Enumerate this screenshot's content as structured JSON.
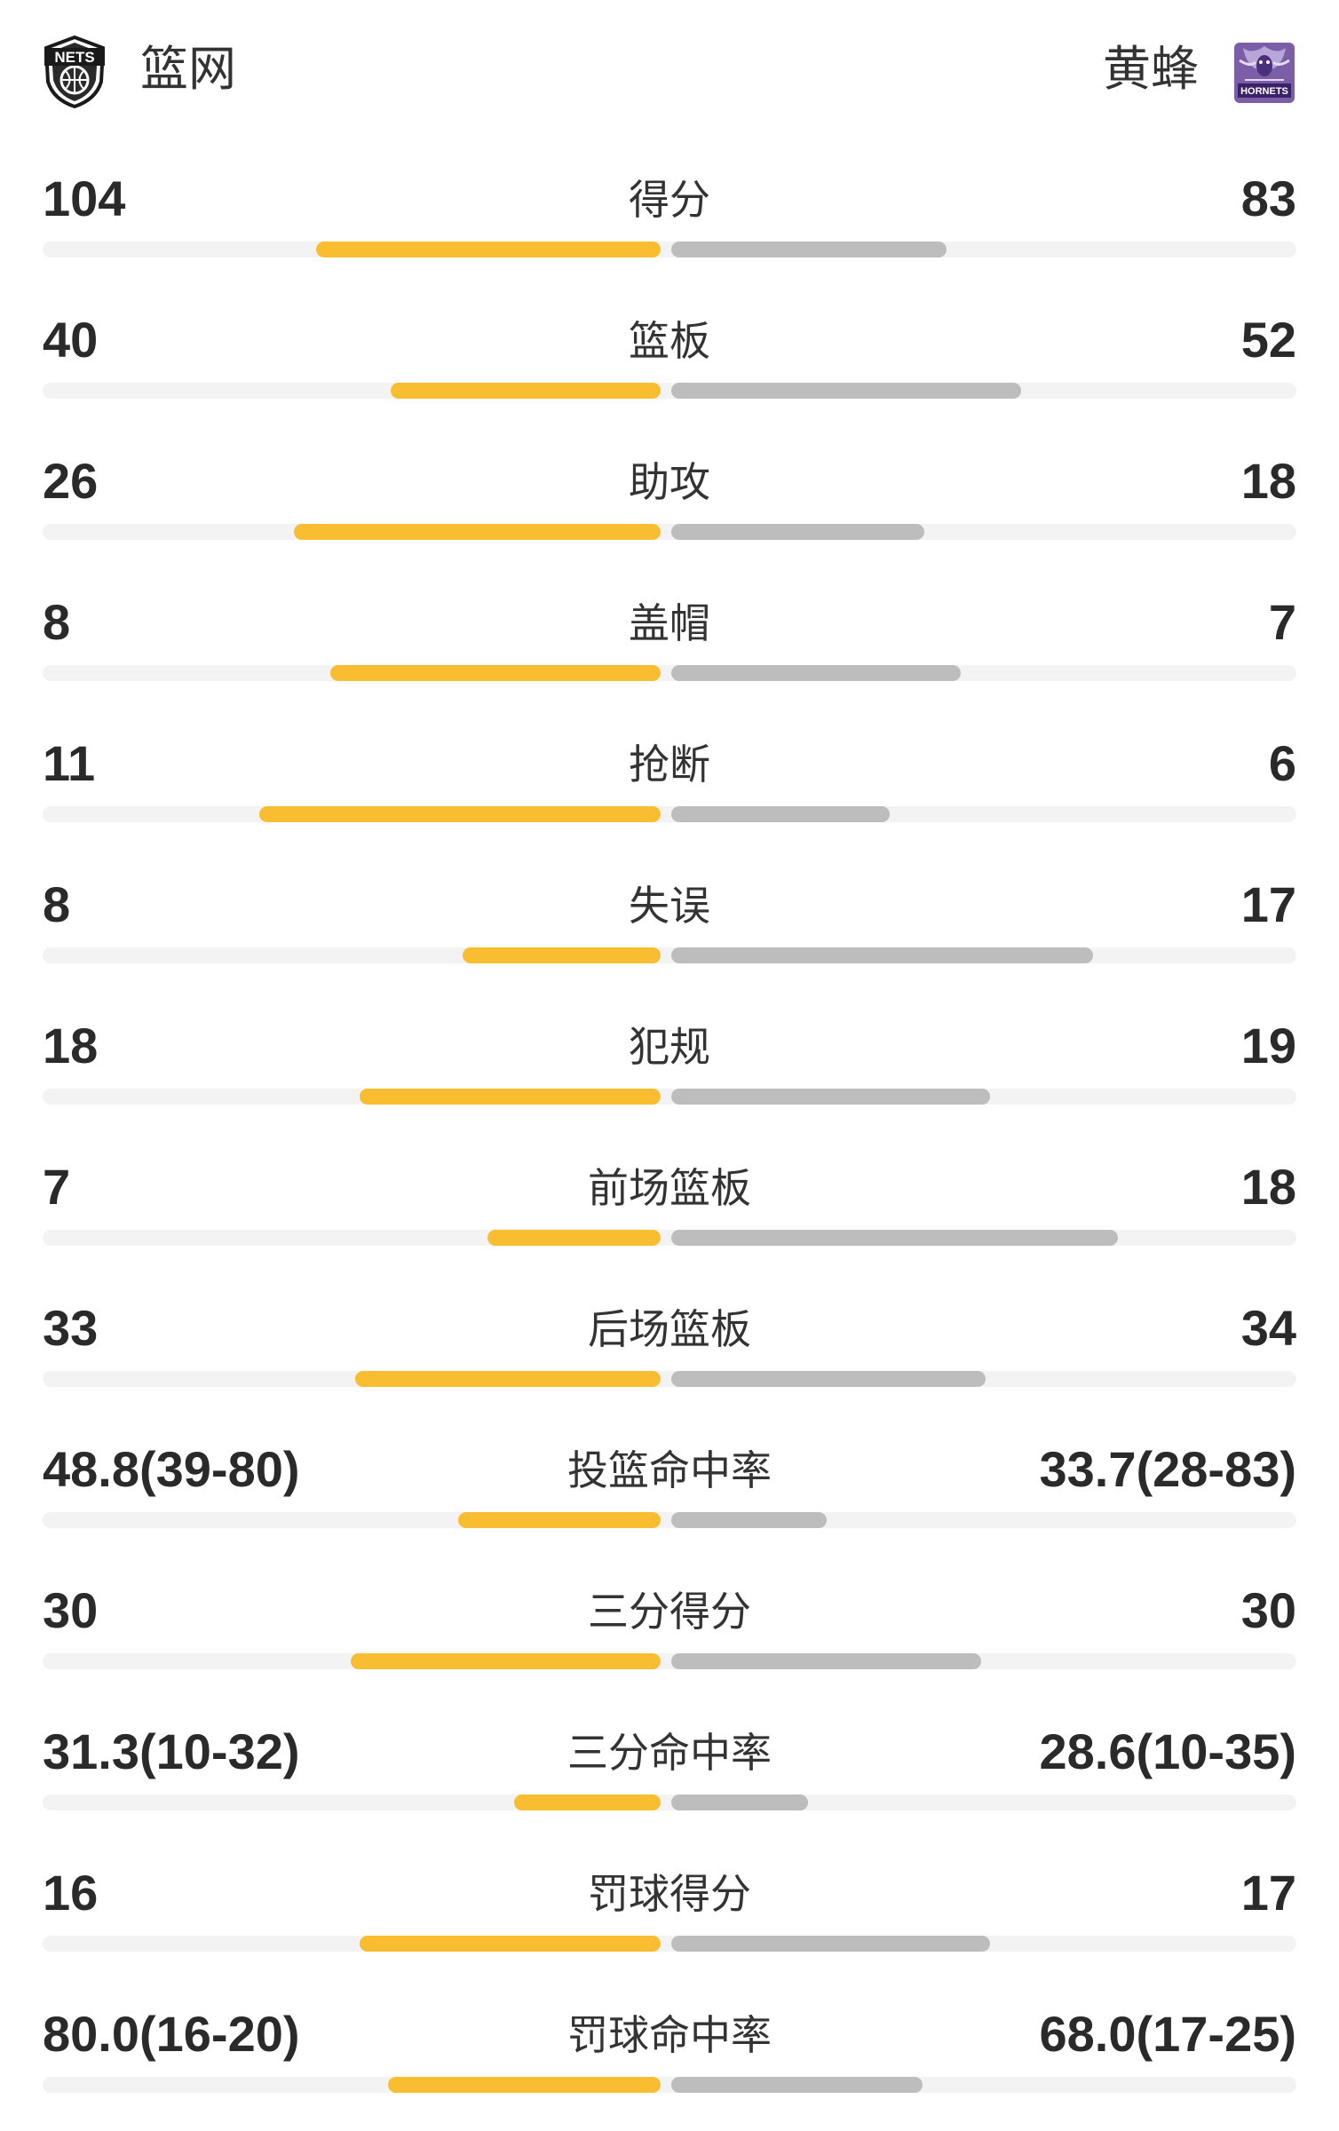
{
  "header": {
    "home_team": "篮网",
    "away_team": "黄蜂",
    "home_logo_text": "NETS",
    "away_logo_text": "HORNETS"
  },
  "colors": {
    "home_bar": "#f9bd31",
    "away_bar": "#bdbdbd",
    "track": "#f3f3f3"
  },
  "stats": [
    {
      "label": "得分",
      "home": "104",
      "away": "83",
      "home_ratio": 0.556,
      "away_ratio": 0.444
    },
    {
      "label": "篮板",
      "home": "40",
      "away": "52",
      "home_ratio": 0.435,
      "away_ratio": 0.565
    },
    {
      "label": "助攻",
      "home": "26",
      "away": "18",
      "home_ratio": 0.591,
      "away_ratio": 0.409
    },
    {
      "label": "盖帽",
      "home": "8",
      "away": "7",
      "home_ratio": 0.533,
      "away_ratio": 0.467
    },
    {
      "label": "抢断",
      "home": "11",
      "away": "6",
      "home_ratio": 0.647,
      "away_ratio": 0.353
    },
    {
      "label": "失误",
      "home": "8",
      "away": "17",
      "home_ratio": 0.32,
      "away_ratio": 0.68
    },
    {
      "label": "犯规",
      "home": "18",
      "away": "19",
      "home_ratio": 0.486,
      "away_ratio": 0.514
    },
    {
      "label": "前场篮板",
      "home": "7",
      "away": "18",
      "home_ratio": 0.28,
      "away_ratio": 0.72
    },
    {
      "label": "后场篮板",
      "home": "33",
      "away": "34",
      "home_ratio": 0.493,
      "away_ratio": 0.507
    },
    {
      "label": "投篮命中率",
      "home": "48.8(39-80)",
      "away": "33.7(28-83)",
      "home_ratio": 0.327,
      "away_ratio": 0.25
    },
    {
      "label": "三分得分",
      "home": "30",
      "away": "30",
      "home_ratio": 0.5,
      "away_ratio": 0.5
    },
    {
      "label": "三分命中率",
      "home": "31.3(10-32)",
      "away": "28.6(10-35)",
      "home_ratio": 0.237,
      "away_ratio": 0.22
    },
    {
      "label": "罚球得分",
      "home": "16",
      "away": "17",
      "home_ratio": 0.485,
      "away_ratio": 0.515
    },
    {
      "label": "罚球命中率",
      "home": "80.0(16-20)",
      "away": "68.0(17-25)",
      "home_ratio": 0.44,
      "away_ratio": 0.405
    }
  ]
}
